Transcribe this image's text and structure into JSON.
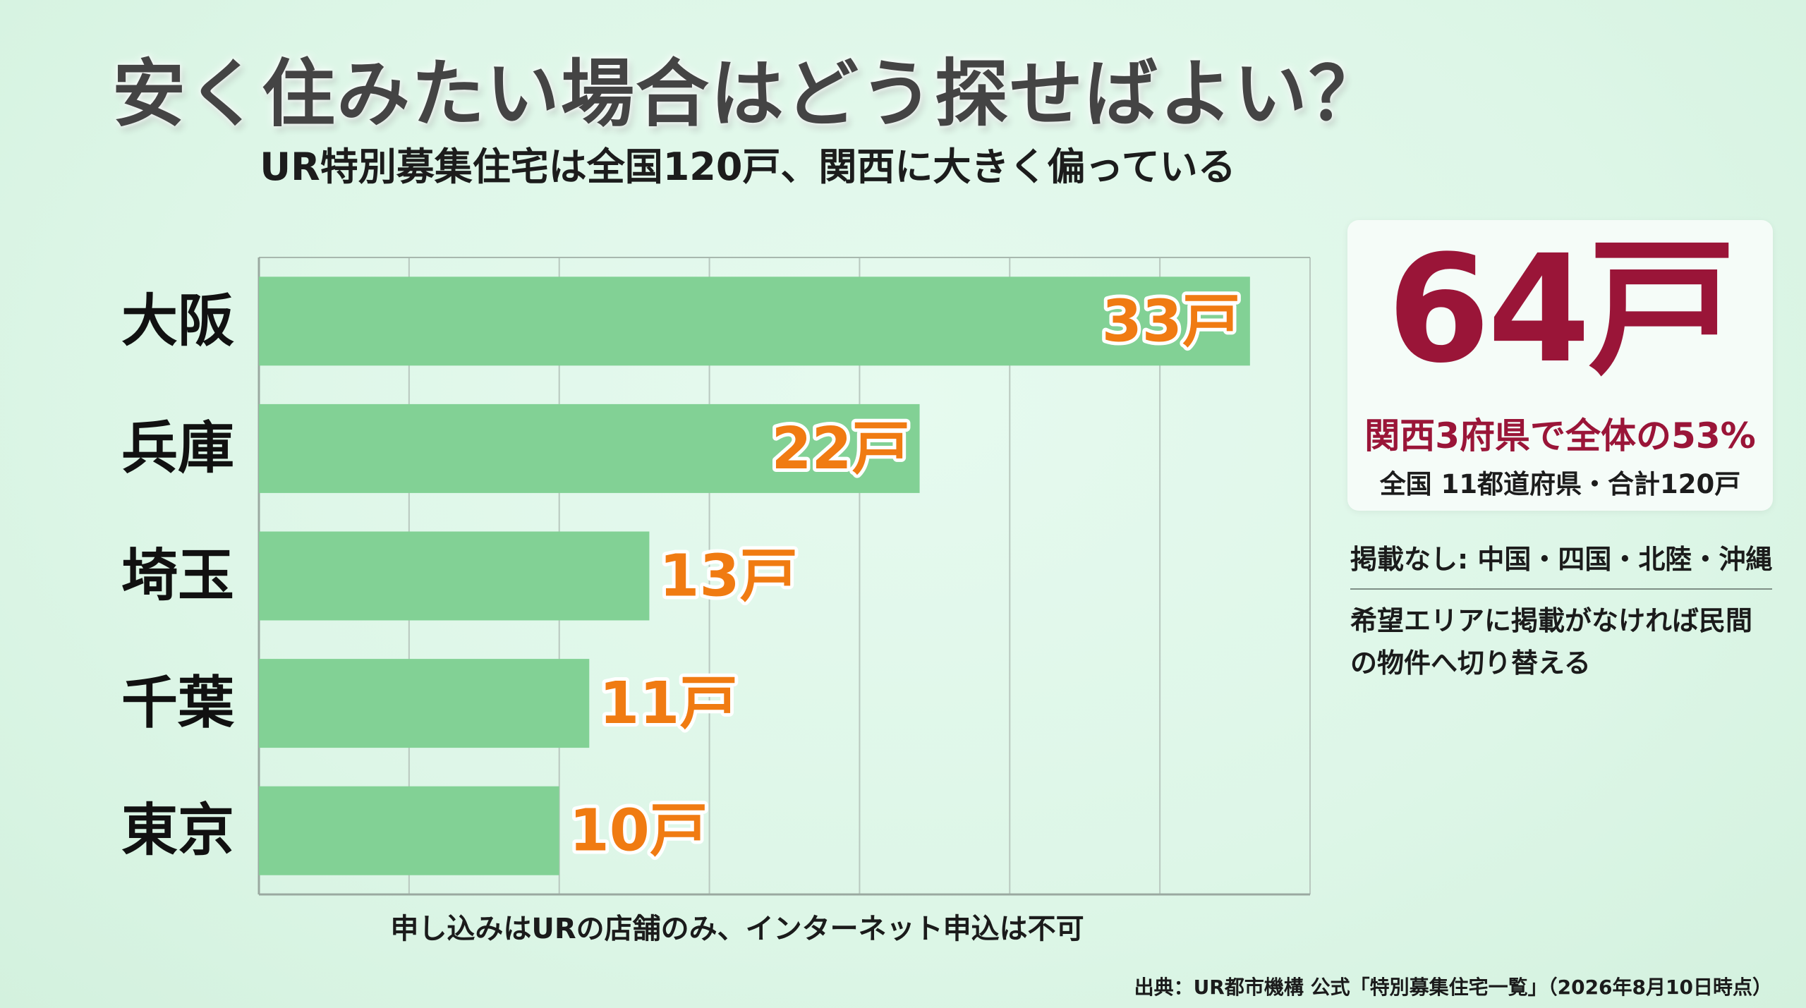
{
  "title": "安く住みたい場合はどう探せばよい？",
  "subtitle": "UR特別募集住宅は全国120戸、関西に大きく偏っている",
  "chart_data": {
    "type": "bar",
    "orientation": "horizontal",
    "categories": [
      "大阪",
      "兵庫",
      "埼玉",
      "千葉",
      "東京"
    ],
    "values": [
      33,
      22,
      13,
      11,
      10
    ],
    "value_labels": [
      "33戸",
      "22戸",
      "13戸",
      "11戸",
      "10戸"
    ],
    "unit": "戸",
    "xlim": [
      0,
      35
    ],
    "grid": true,
    "bar_color": "#82d195",
    "label_color": "#f07b12"
  },
  "highlight": {
    "value": "64戸",
    "caption": "関西3府県で全体の53%",
    "note": "全国 11都道府県・合計120戸",
    "color": "#9a1538"
  },
  "side_note_1": "掲載なし: 中国・四国・北陸・沖縄",
  "side_note_2": "希望エリアに掲載がなければ民間の物件へ切り替える",
  "footer_note": "申し込みはURの店舗のみ、インターネット申込は不可",
  "source": "出典：UR都市機構 公式「特別募集住宅一覧」（2026年8月10日時点）"
}
